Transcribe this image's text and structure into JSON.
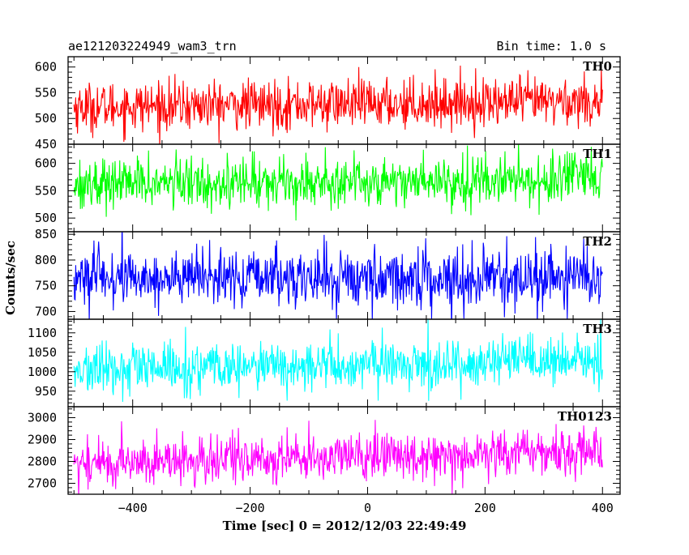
{
  "header": {
    "title": "ae121203224949_wam3_trn",
    "bin_time": "Bin time: 1.0 s"
  },
  "chart_data": {
    "type": "line",
    "title": "ae121203224949_wam3_trn",
    "subtitle": "Bin time: 1.0 s",
    "xlabel": "Time [sec] 0 = 2012/12/03 22:49:49",
    "ylabel": "Counts/sec",
    "xlim": [
      -510,
      430
    ],
    "x_start": -500,
    "x_end": 400,
    "bin_time_s": 1.0,
    "xticks": [
      -400,
      -200,
      0,
      200,
      400
    ],
    "xtick_labels": [
      "−400",
      "−200",
      "0",
      "200",
      "400"
    ],
    "panels": [
      {
        "name": "TH0",
        "color": "#ff0000",
        "ylim": [
          450,
          620
        ],
        "yticks": [
          450,
          500,
          550,
          600
        ],
        "mean": 528,
        "spread": 24,
        "trend": 12
      },
      {
        "name": "TH1",
        "color": "#00ff00",
        "ylim": [
          475,
          635
        ],
        "yticks": [
          500,
          550,
          600
        ],
        "mean": 567,
        "spread": 23,
        "trend": 8
      },
      {
        "name": "TH2",
        "color": "#0000ff",
        "ylim": [
          685,
          855
        ],
        "yticks": [
          700,
          750,
          800,
          850
        ],
        "mean": 765,
        "spread": 28,
        "trend": 0
      },
      {
        "name": "TH3",
        "color": "#00ffff",
        "ylim": [
          910,
          1135
        ],
        "yticks": [
          950,
          1000,
          1050,
          1100
        ],
        "mean": 1015,
        "spread": 32,
        "trend": 25
      },
      {
        "name": "TH0123",
        "color": "#ff00ff",
        "ylim": [
          2650,
          3050
        ],
        "yticks": [
          2700,
          2800,
          2900,
          3000
        ],
        "mean": 2820,
        "spread": 55,
        "trend": 60
      }
    ]
  }
}
